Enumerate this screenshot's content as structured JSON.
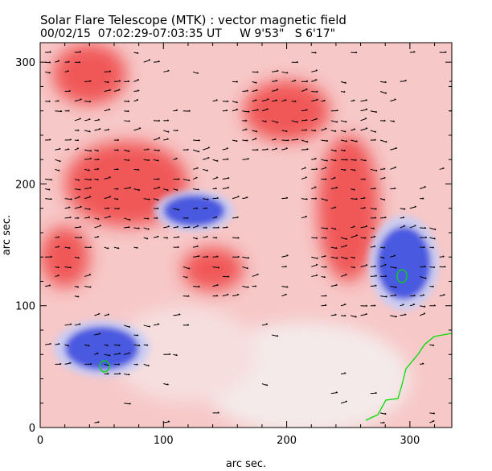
{
  "chart_data": {
    "type": "heatmap",
    "title": "Solar Flare Telescope (MTK) : vector magnetic field",
    "subtitle": "00/02/15  07:02:29-07:03:35 UT     W 9'53\"   S 6'17\"",
    "xlabel": "arc sec.",
    "ylabel": "arc sec.",
    "xlim": [
      0,
      334
    ],
    "ylim": [
      0,
      316
    ],
    "xticks": [
      "0",
      "100",
      "200",
      "300"
    ],
    "xtick_values": [
      0,
      100,
      200,
      300
    ],
    "yticks": [
      "0",
      "100",
      "200",
      "300"
    ],
    "ytick_values": [
      0,
      100,
      200,
      300
    ],
    "colors": {
      "positive": "#ee3333",
      "negative": "#3344dd",
      "background": "#f7c8c8",
      "contour": "#00cc00",
      "vectors": "#000000"
    },
    "negative_regions": [
      {
        "x": 125,
        "y": 178,
        "rx": 25,
        "ry": 13
      },
      {
        "x": 295,
        "y": 135,
        "rx": 22,
        "ry": 30
      },
      {
        "x": 50,
        "y": 65,
        "rx": 30,
        "ry": 18
      }
    ],
    "positive_regions": [
      {
        "x": 70,
        "y": 200,
        "rx": 50,
        "ry": 35
      },
      {
        "x": 40,
        "y": 290,
        "rx": 30,
        "ry": 25
      },
      {
        "x": 250,
        "y": 180,
        "rx": 25,
        "ry": 60
      },
      {
        "x": 200,
        "y": 260,
        "rx": 35,
        "ry": 25
      },
      {
        "x": 140,
        "y": 130,
        "rx": 25,
        "ry": 18
      },
      {
        "x": 20,
        "y": 140,
        "rx": 20,
        "ry": 25
      }
    ]
  }
}
